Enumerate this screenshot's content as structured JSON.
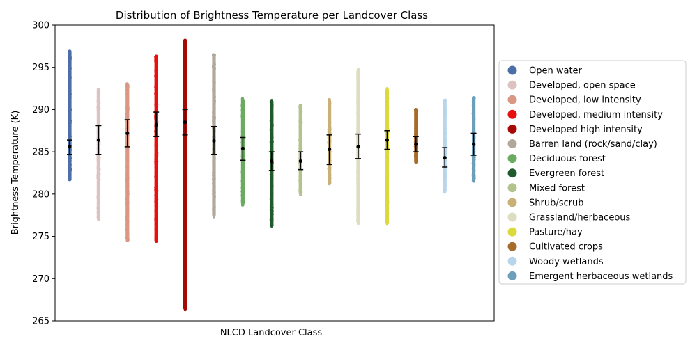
{
  "chart_data": {
    "type": "scatter",
    "title": "Distribution of Brightness Temperature per Landcover Class",
    "xlabel": "NLCD Landcover Class",
    "ylabel": "Brightness Temperature (K)",
    "ylim": [
      265,
      300
    ],
    "yticks": [
      "265",
      "270",
      "275",
      "280",
      "285",
      "290",
      "295",
      "300"
    ],
    "grid": false,
    "legend_position": "right",
    "series": [
      {
        "name": "Open water",
        "color": "#4c6fa8",
        "min": 281.6,
        "max": 297.1,
        "mean": 285.6,
        "std_low": 284.7,
        "std_high": 286.4,
        "outliers": [
          295.0,
          295.5,
          296.0
        ]
      },
      {
        "name": "Developed, open space",
        "color": "#dcc3c2",
        "min": 277.0,
        "max": 292.6,
        "mean": 286.4,
        "std_low": 284.7,
        "std_high": 288.1,
        "outliers": [
          277.2,
          277.6,
          278.5,
          279.0,
          279.5,
          280.0
        ]
      },
      {
        "name": "Developed, low intensity",
        "color": "#d99884",
        "min": 274.5,
        "max": 293.2,
        "mean": 287.2,
        "std_low": 285.6,
        "std_high": 288.8,
        "outliers": [
          274.5,
          275.2,
          275.5,
          276.2,
          277.5,
          278.5
        ]
      },
      {
        "name": "Developed, medium intensity",
        "color": "#e8100e",
        "min": 274.3,
        "max": 296.5,
        "mean": 288.2,
        "std_low": 286.8,
        "std_high": 289.7,
        "outliers": [
          274.4,
          275.2,
          275.8,
          276.5
        ]
      },
      {
        "name": "Developed high intensity",
        "color": "#a50a04",
        "min": 266.3,
        "max": 298.4,
        "mean": 288.5,
        "std_low": 287.0,
        "std_high": 290.0,
        "outliers": [
          266.3,
          266.6,
          267.3,
          267.6,
          268.1,
          268.8,
          269.2,
          269.6,
          270.1,
          270.6,
          271.1,
          271.5,
          272.0,
          272.5
        ]
      },
      {
        "name": "Barren land (rock/sand/clay)",
        "color": "#b1a89c",
        "min": 277.3,
        "max": 296.6,
        "mean": 286.3,
        "std_low": 284.7,
        "std_high": 288.0,
        "outliers": [
          277.3,
          277.7,
          278.1,
          278.9,
          279.8,
          280.9
        ]
      },
      {
        "name": "Deciduous forest",
        "color": "#6aab61",
        "min": 278.7,
        "max": 291.3,
        "mean": 285.4,
        "std_low": 284.0,
        "std_high": 286.7,
        "outliers": [
          278.7,
          279.9
        ]
      },
      {
        "name": "Evergreen forest",
        "color": "#1f5b2c",
        "min": 276.2,
        "max": 291.1,
        "mean": 283.9,
        "std_low": 282.8,
        "std_high": 285.0,
        "outliers": [
          276.2,
          291.1
        ]
      },
      {
        "name": "Mixed forest",
        "color": "#b2c38c",
        "min": 279.9,
        "max": 290.7,
        "mean": 283.9,
        "std_low": 282.9,
        "std_high": 285.0,
        "outliers": [
          279.9
        ]
      },
      {
        "name": "Shrub/scrub",
        "color": "#c9b077",
        "min": 281.2,
        "max": 291.2,
        "mean": 285.3,
        "std_low": 283.5,
        "std_high": 287.0,
        "outliers": [
          281.2
        ]
      },
      {
        "name": "Grassland/herbaceous",
        "color": "#deddc1",
        "min": 276.5,
        "max": 294.8,
        "mean": 285.6,
        "std_low": 284.2,
        "std_high": 287.1,
        "outliers": [
          276.5,
          277.0,
          277.6,
          278.6,
          279.0,
          279.6,
          293.5,
          294.3,
          294.8
        ]
      },
      {
        "name": "Pasture/hay",
        "color": "#dcd93c",
        "min": 276.5,
        "max": 292.5,
        "mean": 286.4,
        "std_low": 285.3,
        "std_high": 287.5,
        "outliers": [
          276.5,
          278.9,
          292.0,
          292.5
        ]
      },
      {
        "name": "Cultivated crops",
        "color": "#a56c2b",
        "min": 283.6,
        "max": 290.2,
        "mean": 285.9,
        "std_low": 285.0,
        "std_high": 286.8,
        "outliers": []
      },
      {
        "name": "Woody wetlands",
        "color": "#b8d6ea",
        "min": 280.2,
        "max": 291.3,
        "mean": 284.3,
        "std_low": 283.2,
        "std_high": 285.5,
        "outliers": [
          280.2,
          280.5
        ]
      },
      {
        "name": "Emergent herbaceous wetlands",
        "color": "#6c9fba",
        "min": 281.5,
        "max": 291.6,
        "mean": 285.9,
        "std_low": 284.6,
        "std_high": 287.2,
        "outliers": [
          281.5
        ]
      }
    ]
  }
}
